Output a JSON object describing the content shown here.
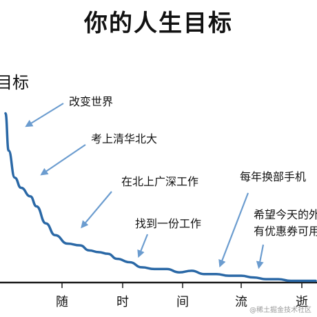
{
  "chart_data": {
    "type": "line",
    "title": "你的人生目标",
    "ylabel": "目标",
    "xlabel": "随时间流逝",
    "x_ticks": [
      "随",
      "时",
      "间",
      "流",
      "逝"
    ],
    "series": [
      {
        "values": [
          [
            0,
            100
          ],
          [
            1,
            78
          ],
          [
            3,
            62
          ],
          [
            5,
            56
          ],
          [
            8,
            51
          ],
          [
            10,
            45
          ],
          [
            13,
            35
          ],
          [
            16,
            28
          ],
          [
            20,
            23
          ],
          [
            24,
            22
          ],
          [
            27,
            19
          ],
          [
            30,
            18
          ],
          [
            33,
            17
          ],
          [
            36,
            14
          ],
          [
            40,
            12
          ],
          [
            44,
            9
          ],
          [
            48,
            8
          ],
          [
            52,
            8
          ],
          [
            56,
            6
          ],
          [
            60,
            7
          ],
          [
            64,
            5
          ],
          [
            68,
            5
          ],
          [
            72,
            4
          ],
          [
            76,
            4
          ],
          [
            80,
            3
          ],
          [
            84,
            2
          ],
          [
            88,
            2
          ],
          [
            92,
            1
          ],
          [
            96,
            1
          ],
          [
            100,
            1
          ]
        ],
        "color": "#2a68a6"
      }
    ],
    "xlim": [
      0,
      100
    ],
    "ylim": [
      0,
      110
    ],
    "annotations": [
      {
        "text": "改变世界",
        "x": 2,
        "y": 72
      },
      {
        "text": "考上清华北大",
        "x": 9,
        "y": 48
      },
      {
        "text": "在北上广深工作",
        "x": 19,
        "y": 24
      },
      {
        "text": "找到一份工作",
        "x": 34,
        "y": 15
      },
      {
        "text": "每年换部手机",
        "x": 52,
        "y": 9
      },
      {
        "text": "希望今天的外卖",
        "x": 62,
        "y": 7
      },
      {
        "text": "有优惠券可用",
        "x": 62,
        "y": 5
      }
    ],
    "grid": false
  },
  "watermark": "@稀土掘金技术社区"
}
